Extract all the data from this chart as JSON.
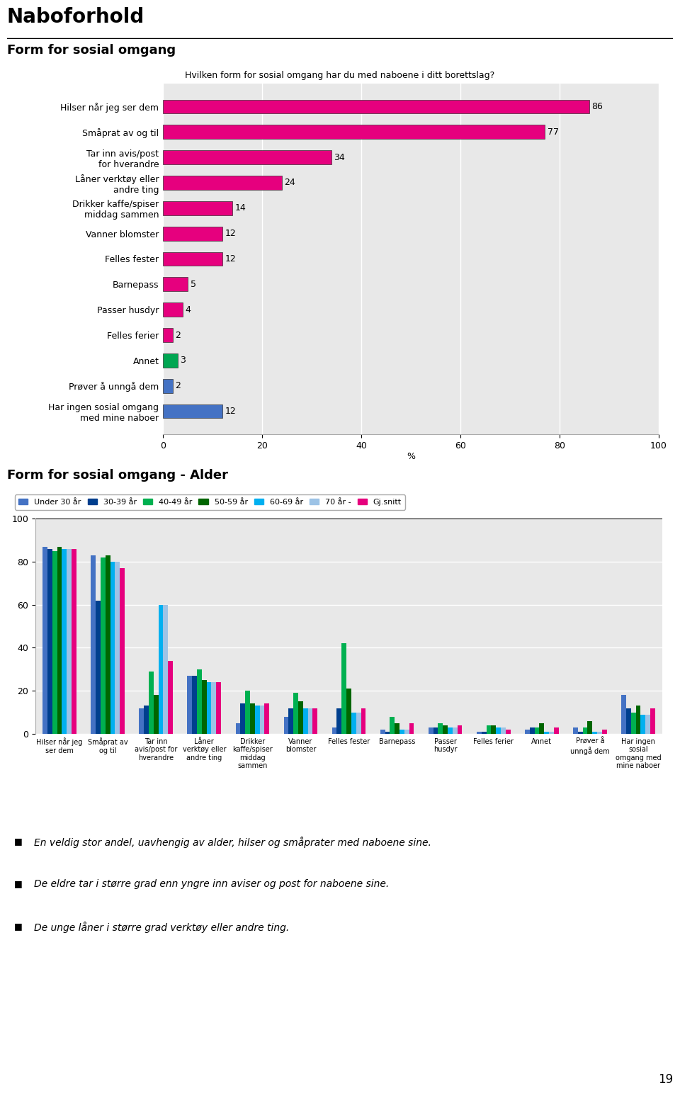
{
  "page_title": "Naboforhold",
  "chart1_title": "Form for sosial omgang",
  "chart1_subtitle": "Hvilken form for sosial omgang har du med naboene i ditt borettslag?",
  "chart1_categories": [
    "Hilser når jeg ser dem",
    "Småprat av og til",
    "Tar inn avis/post\nfor hverandre",
    "Låner verktøy eller\nandre ting",
    "Drikker kaffe/spiser\nmiddag sammen",
    "Vanner blomster",
    "Felles fester",
    "Barnepass",
    "Passer husdyr",
    "Felles ferier",
    "Annet",
    "Prøver å unngå dem",
    "Har ingen sosial omgang\nmed mine naboer"
  ],
  "chart1_values": [
    86,
    77,
    34,
    24,
    14,
    12,
    12,
    5,
    4,
    2,
    3,
    2,
    12
  ],
  "chart1_colors": [
    "#e6007e",
    "#e6007e",
    "#e6007e",
    "#e6007e",
    "#e6007e",
    "#e6007e",
    "#e6007e",
    "#e6007e",
    "#e6007e",
    "#e6007e",
    "#00a651",
    "#4472c4",
    "#4472c4"
  ],
  "chart1_xlabel": "%",
  "chart1_xlim": [
    0,
    100
  ],
  "chart1_xticks": [
    0,
    20,
    40,
    60,
    80,
    100
  ],
  "chart2_title": "Form for sosial omgang - Alder",
  "chart2_legend": [
    "Under 30 år",
    "30-39 år",
    "40-49 år",
    "50-59 år",
    "60-69 år",
    "70 år -",
    "Gj.snitt"
  ],
  "chart2_legend_colors": [
    "#4472c4",
    "#003f8e",
    "#00b050",
    "#006600",
    "#00b0f0",
    "#9dc3e6",
    "#e6007e"
  ],
  "chart2_categories": [
    "Hilser når jeg\nser dem",
    "Småprat av\nog til",
    "Tar inn\navis/post for\nhverandre",
    "Låner\nverktøy eller\nandre ting",
    "Drikker\nkaffe/spiser\nmiddag\nsammen",
    "Vanner\nblomster",
    "Felles fester",
    "Barnepass",
    "Passer\nhusdyr",
    "Felles ferier",
    "Annet",
    "Prøver å\nunngå dem",
    "Har ingen\nsosial\nomgang med\nmine naboer"
  ],
  "chart2_data": {
    "Under 30 år": [
      87,
      83,
      12,
      27,
      5,
      8,
      3,
      2,
      3,
      1,
      2,
      3,
      18
    ],
    "30-39 år": [
      86,
      62,
      13,
      27,
      14,
      12,
      12,
      1,
      3,
      1,
      3,
      1,
      12
    ],
    "40-49 år": [
      85,
      82,
      29,
      30,
      20,
      19,
      42,
      8,
      5,
      4,
      3,
      3,
      10
    ],
    "50-59 år": [
      87,
      83,
      18,
      25,
      14,
      15,
      21,
      5,
      4,
      4,
      5,
      6,
      13
    ],
    "60-69 år": [
      86,
      80,
      60,
      24,
      13,
      12,
      10,
      2,
      3,
      3,
      1,
      1,
      9
    ],
    "70 år -": [
      86,
      80,
      60,
      24,
      13,
      12,
      10,
      2,
      3,
      3,
      1,
      1,
      9
    ],
    "Gj.snitt": [
      86,
      77,
      34,
      24,
      14,
      12,
      12,
      5,
      4,
      2,
      3,
      2,
      12
    ]
  },
  "chart2_ylim": [
    0,
    100
  ],
  "chart2_yticks": [
    0,
    20,
    40,
    60,
    80,
    100
  ],
  "footer_bullets": [
    "En veldig stor andel, uavhengig av alder, hilser og småprater med naboene sine.",
    "De eldre tar i større grad enn yngre inn aviser og post for naboene sine.",
    "De unge låner i større grad verktøy eller andre ting."
  ],
  "page_number": "19",
  "plot_bg_color": "#e8e8e8",
  "chart_border_color": "#aaaaaa"
}
